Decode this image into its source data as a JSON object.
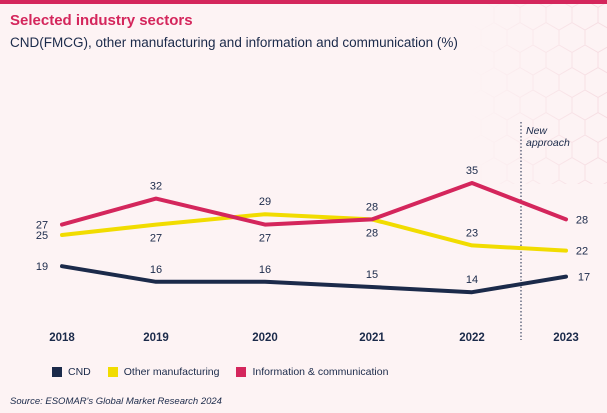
{
  "header": {
    "title": "Selected industry sectors",
    "subtitle": "CND(FMCG), other manufacturing and information and communication (%)"
  },
  "source": "Source: ESOMAR's Global Market Research 2024",
  "chart_data": {
    "type": "line",
    "x": [
      "2018",
      "2019",
      "2020",
      "2021",
      "2022",
      "2023"
    ],
    "ylim": [
      0,
      40
    ],
    "grid": false,
    "legend_position": "bottom-left",
    "annotation": {
      "x_between": [
        "2022",
        "2023"
      ],
      "text_lines": [
        "New",
        "approach"
      ],
      "style": "dotted-vertical-line"
    },
    "series": [
      {
        "name": "CND",
        "color": "#1b2a4a",
        "values": [
          19,
          16,
          16,
          15,
          14,
          17
        ]
      },
      {
        "name": "Other manufacturing",
        "color": "#f1dc00",
        "values": [
          25,
          27,
          29,
          28,
          23,
          22
        ]
      },
      {
        "name": "Information & communication",
        "color": "#d4265c",
        "values": [
          27,
          32,
          27,
          28,
          35,
          28
        ]
      }
    ]
  }
}
